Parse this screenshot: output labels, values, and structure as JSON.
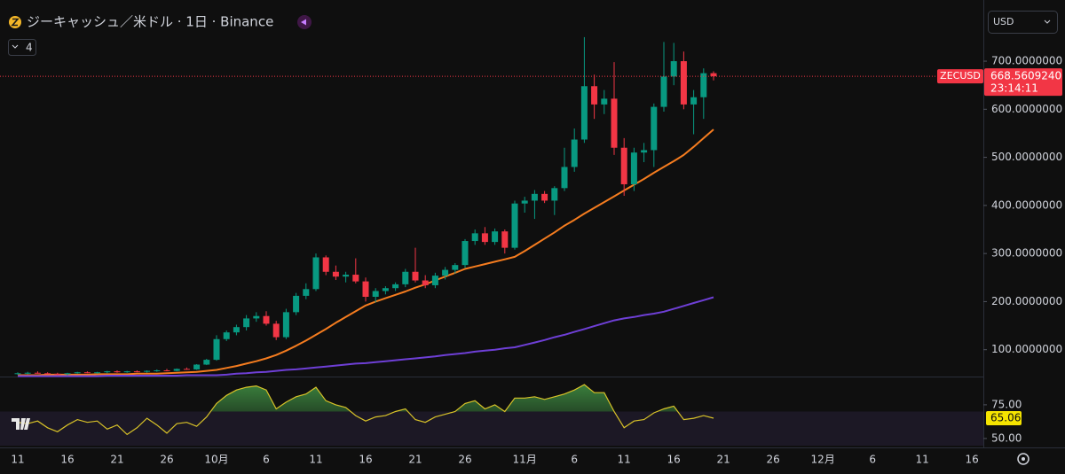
{
  "chart_data": {
    "type": "candlestick",
    "title": "ジーキャッシュ／米ドル · 1日 · Binance",
    "indicator_count": "4",
    "currency": "USD",
    "symbol_tag": "ZECUSD",
    "countdown": "23:14:11",
    "price_tag": {
      "value": 668.560924,
      "label": "668.5609240"
    },
    "up_color": "#089981",
    "down_color": "#f23645",
    "categories": [
      "11",
      null,
      null,
      null,
      null,
      "16",
      null,
      null,
      null,
      null,
      "21",
      null,
      null,
      null,
      null,
      "26",
      null,
      null,
      null,
      null,
      "10月",
      null,
      null,
      null,
      null,
      "6",
      null,
      null,
      null,
      null,
      "11",
      null,
      null,
      null,
      null,
      "16",
      null,
      null,
      null,
      null,
      "21",
      null,
      null,
      null,
      null,
      "26",
      null,
      null,
      null,
      null,
      null,
      "11月",
      null,
      null,
      null,
      null,
      "6",
      null,
      null,
      null,
      null,
      "11",
      null,
      null,
      null,
      null,
      "16",
      null,
      null,
      null,
      null,
      "21",
      null,
      null,
      null,
      null,
      "26",
      null,
      null,
      null,
      null,
      "12月",
      null,
      null,
      null,
      null,
      "6",
      null,
      null,
      null,
      null,
      "11",
      null,
      null,
      null,
      null,
      "16"
    ],
    "open": [
      50,
      51,
      52,
      51,
      50,
      49,
      51,
      53,
      52,
      53,
      55,
      53,
      55,
      54,
      56,
      57,
      56,
      60,
      59,
      69,
      79,
      122,
      136,
      147,
      165,
      170,
      154,
      126,
      178,
      212,
      226,
      292,
      262,
      252,
      256,
      242,
      210,
      222,
      228,
      236,
      262,
      244,
      234,
      254,
      266,
      276,
      326,
      342,
      324,
      346,
      312,
      404,
      410,
      424,
      410,
      436,
      480,
      537,
      648,
      610,
      622,
      520,
      444,
      510,
      515,
      605,
      668,
      700,
      610,
      625,
      675,
      null,
      null,
      null,
      null,
      null,
      null,
      null,
      null,
      null,
      null,
      null,
      null,
      null,
      null,
      null,
      null,
      null,
      null,
      null,
      null,
      null,
      null,
      null,
      null,
      null,
      null
    ],
    "high": [
      53,
      54,
      55,
      53,
      52,
      52,
      54,
      55,
      54,
      56,
      57,
      56,
      57,
      57,
      59,
      60,
      61,
      63,
      70,
      81,
      130,
      140,
      152,
      172,
      178,
      180,
      160,
      185,
      218,
      238,
      300,
      296,
      275,
      262,
      290,
      250,
      228,
      232,
      240,
      268,
      312,
      255,
      260,
      272,
      280,
      330,
      350,
      355,
      352,
      350,
      410,
      418,
      432,
      430,
      440,
      520,
      560,
      750,
      672,
      640,
      698,
      540,
      520,
      530,
      612,
      740,
      738,
      720,
      640,
      685,
      679,
      null,
      null,
      null,
      null,
      null,
      null,
      null,
      null,
      null,
      null,
      null,
      null,
      null,
      null,
      null,
      null,
      null,
      null,
      null,
      null,
      null,
      null,
      null,
      null,
      null,
      null
    ],
    "low": [
      48,
      49,
      50,
      49,
      47,
      47,
      50,
      51,
      50,
      51,
      52,
      52,
      53,
      52,
      54,
      55,
      55,
      58,
      58,
      68,
      77,
      118,
      130,
      140,
      158,
      150,
      120,
      122,
      172,
      205,
      222,
      255,
      245,
      240,
      238,
      200,
      198,
      215,
      222,
      230,
      240,
      228,
      228,
      246,
      258,
      270,
      318,
      318,
      318,
      300,
      308,
      385,
      372,
      405,
      380,
      430,
      470,
      530,
      580,
      590,
      505,
      420,
      430,
      490,
      480,
      595,
      650,
      600,
      548,
      580,
      660,
      null,
      null,
      null,
      null,
      null,
      null,
      null,
      null,
      null,
      null,
      null,
      null,
      null,
      null,
      null,
      null,
      null,
      null,
      null,
      null,
      null,
      null,
      null,
      null,
      null,
      null
    ],
    "close": [
      51,
      52,
      51,
      50,
      49,
      51,
      53,
      52,
      53,
      55,
      53,
      55,
      54,
      56,
      57,
      56,
      60,
      59,
      69,
      79,
      122,
      136,
      147,
      165,
      170,
      154,
      126,
      178,
      212,
      226,
      292,
      262,
      252,
      256,
      242,
      210,
      222,
      228,
      236,
      262,
      244,
      234,
      254,
      266,
      276,
      326,
      342,
      324,
      346,
      312,
      404,
      410,
      424,
      410,
      436,
      480,
      537,
      648,
      610,
      622,
      520,
      444,
      510,
      515,
      605,
      668,
      700,
      610,
      625,
      675,
      668.560924,
      null,
      null,
      null,
      null,
      null,
      null,
      null,
      null,
      null,
      null,
      null,
      null,
      null,
      null,
      null,
      null,
      null,
      null,
      null,
      null,
      null,
      null,
      null,
      null,
      null,
      null
    ],
    "series": [
      {
        "color": "#f57c1f",
        "values": [
          47,
          47,
          47,
          48,
          48,
          48,
          48,
          48,
          49,
          49,
          49,
          49,
          50,
          50,
          50,
          51,
          52,
          53,
          54,
          56,
          58,
          62,
          66,
          71,
          76,
          82,
          89,
          98,
          108,
          119,
          131,
          143,
          156,
          168,
          180,
          192,
          200,
          207,
          214,
          221,
          229,
          236,
          244,
          252,
          260,
          268,
          273,
          278,
          283,
          288,
          293,
          305,
          318,
          331,
          344,
          358,
          370,
          383,
          395,
          407,
          419,
          431,
          443,
          455,
          468,
          480,
          492,
          505,
          522,
          540,
          558,
          null,
          null,
          null,
          null,
          null,
          null,
          null,
          null,
          null,
          null,
          null,
          null,
          null,
          null,
          null,
          null,
          null,
          null,
          null,
          null,
          null,
          null,
          null,
          null,
          null,
          null
        ]
      },
      {
        "color": "#6e3fd6",
        "values": [
          45,
          45,
          45,
          45,
          45,
          45,
          45,
          45,
          45,
          46,
          46,
          46,
          46,
          46,
          46,
          46,
          46,
          47,
          47,
          47,
          47,
          48,
          50,
          51,
          53,
          54,
          56,
          58,
          59,
          61,
          63,
          65,
          67,
          69,
          71,
          72,
          74,
          76,
          78,
          80,
          82,
          84,
          86,
          89,
          91,
          93,
          96,
          98,
          100,
          103,
          105,
          110,
          115,
          120,
          126,
          131,
          137,
          143,
          149,
          155,
          161,
          165,
          168,
          172,
          175,
          179,
          185,
          191,
          197,
          203,
          209,
          null,
          null,
          null,
          null,
          null,
          null,
          null,
          null,
          null,
          null,
          null,
          null,
          null,
          null,
          null,
          null,
          null,
          null,
          null,
          null,
          null,
          null,
          null,
          null,
          null,
          null
        ]
      }
    ],
    "ylim": [
      46,
      818
    ],
    "yticks": [
      {
        "value": 100,
        "label": "100.0000000"
      },
      {
        "value": 200,
        "label": "200.0000000"
      },
      {
        "value": 300,
        "label": "300.0000000"
      },
      {
        "value": 400,
        "label": "400.0000000"
      },
      {
        "value": 500,
        "label": "500.0000000"
      },
      {
        "value": 600,
        "label": "600.0000000"
      },
      {
        "value": 700,
        "label": "700.0000000"
      }
    ],
    "rsi": {
      "type": "line",
      "color": "#d8c228",
      "fill_color": "#4caf50",
      "band": [
        30,
        70
      ],
      "band_color": "#7e57c2",
      "values": [
        62,
        61,
        63,
        58,
        55,
        60,
        64,
        62,
        63,
        57,
        60,
        53,
        58,
        65,
        60,
        54,
        61,
        62,
        59,
        66,
        76,
        82,
        86,
        88,
        89,
        86,
        72,
        77,
        81,
        83,
        88,
        78,
        75,
        73,
        67,
        63,
        66,
        67,
        70,
        72,
        64,
        62,
        66,
        68,
        70,
        76,
        78,
        72,
        75,
        70,
        80,
        80,
        81,
        79,
        81,
        83,
        86,
        90,
        84,
        84,
        70,
        58,
        63,
        64,
        69,
        72,
        74,
        64,
        65,
        67,
        65.06,
        null,
        null,
        null,
        null,
        null,
        null,
        null,
        null,
        null,
        null,
        null,
        null,
        null,
        null,
        null,
        null,
        null,
        null,
        null,
        null,
        null,
        null,
        null,
        null,
        null,
        null
      ],
      "ylim": [
        44.7,
        94
      ],
      "yticks": [
        {
          "value": 75,
          "label": "75.00"
        },
        {
          "value": 50,
          "label": "50.00"
        }
      ]
    }
  }
}
